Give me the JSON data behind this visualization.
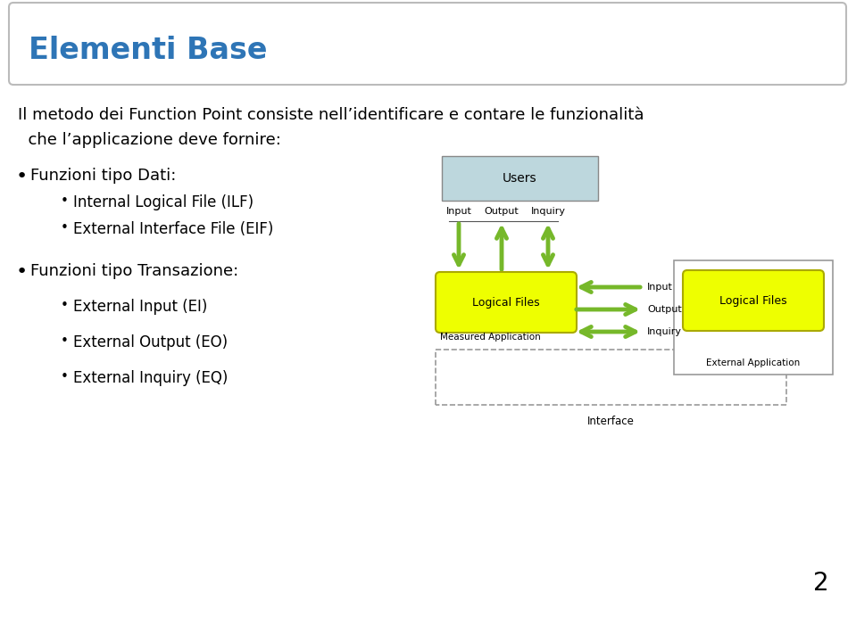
{
  "title": "Elementi Base",
  "title_color": "#2E75B6",
  "bg_color": "#FFFFFF",
  "title_box_edge": "#BBBBBB",
  "body_text_line1": "Il metodo dei Function Point consiste nell’identificare e contare le funzionalità",
  "body_text_line2": "  che l’applicazione deve fornire:",
  "bullet1": "Funzioni tipo Dati:",
  "sub_bullet1": "Internal Logical File (ILF)",
  "sub_bullet2": "External Interface File (EIF)",
  "bullet2": "Funzioni tipo Transazione:",
  "sub_bullet3": "External Input (EI)",
  "sub_bullet4": "External Output (EO)",
  "sub_bullet5": "External Inquiry (EQ)",
  "page_num": "2",
  "users_box_color": "#BDD7DD",
  "users_box_edge": "#888888",
  "logical_files_color": "#EEFF00",
  "logical_files_edge": "#AAAA00",
  "ext_app_box_color": "#FFFFFF",
  "ext_app_box_edge": "#999999",
  "arrow_color": "#76B82A",
  "interface_dash_color": "#999999",
  "text_color": "#000000",
  "font_size_title": 24,
  "font_size_body": 13,
  "font_size_bullet": 13,
  "font_size_sub": 12,
  "font_size_diagram": 8
}
